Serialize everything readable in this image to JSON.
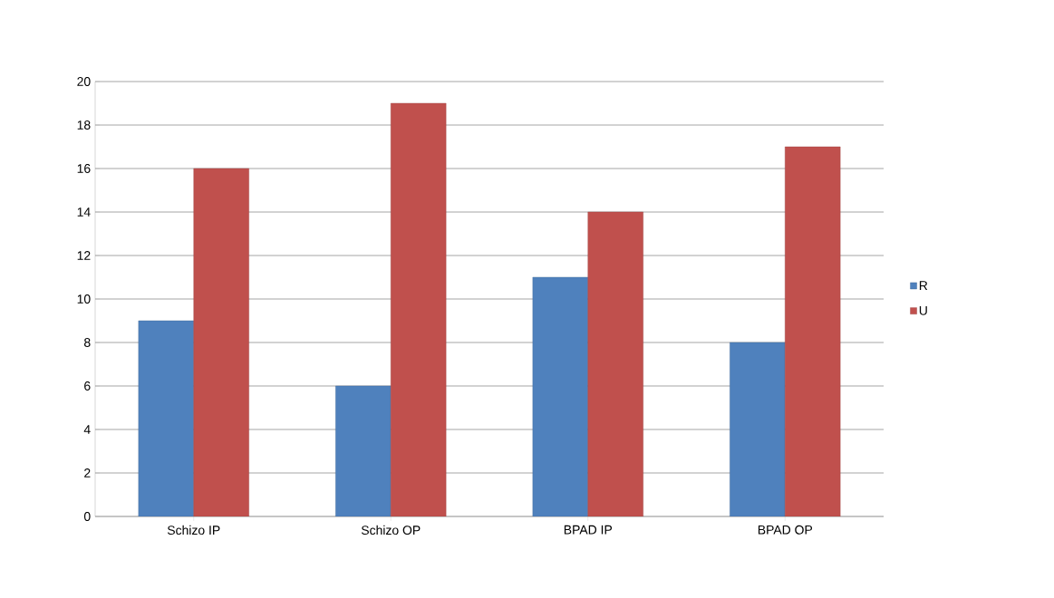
{
  "chart_data": {
    "type": "bar",
    "categories": [
      "Schizo IP",
      "Schizo OP",
      "BPAD IP",
      "BPAD OP"
    ],
    "series": [
      {
        "name": "R",
        "color": "#4f81bd",
        "values": [
          9,
          6,
          11,
          8
        ]
      },
      {
        "name": "U",
        "color": "#c0504d",
        "values": [
          16,
          19,
          14,
          17
        ]
      }
    ],
    "ylim": [
      0,
      20
    ],
    "yticks": [
      0,
      2,
      4,
      6,
      8,
      10,
      12,
      14,
      16,
      18,
      20
    ],
    "grid": "y",
    "legend": "right"
  }
}
